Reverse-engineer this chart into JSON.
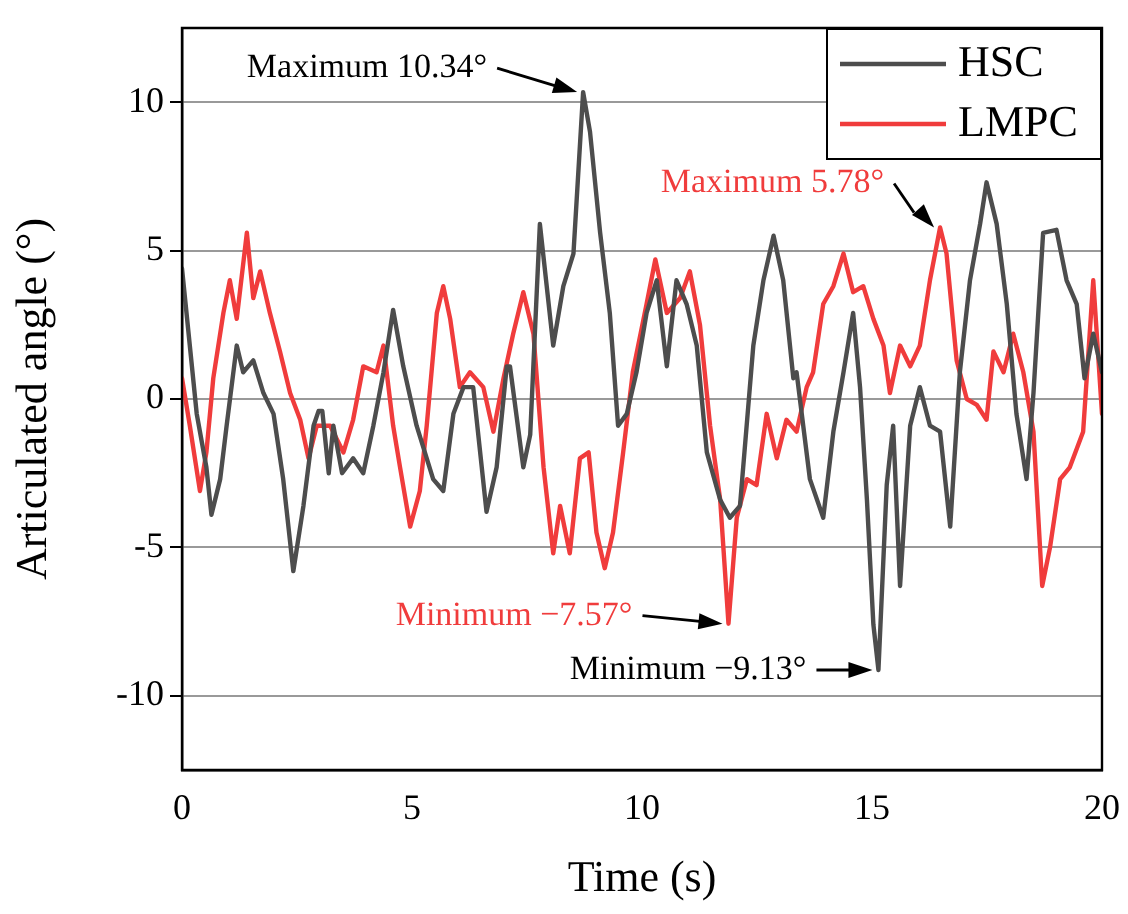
{
  "chart_data": {
    "type": "line",
    "xlabel": "Time (s)",
    "ylabel": "Articulated angle (°)",
    "xlim": [
      0,
      20
    ],
    "xticks": [
      0,
      5,
      10,
      15,
      20
    ],
    "ylim": [
      -12.5,
      12.5
    ],
    "yticks": [
      -10,
      -5,
      0,
      5,
      10
    ],
    "grid": "y",
    "legend": "top right",
    "marker": "none",
    "line_style": "solid",
    "series": [
      {
        "name": "HSC",
        "color": "#4d4d4d",
        "x": [
          0,
          0.32,
          0.53,
          0.64,
          0.83,
          0.97,
          1.19,
          1.33,
          1.55,
          1.77,
          1.99,
          2.2,
          2.42,
          2.64,
          2.86,
          2.97,
          3.05,
          3.19,
          3.29,
          3.48,
          3.72,
          3.94,
          4.16,
          4.38,
          4.59,
          4.81,
          5.1,
          5.46,
          5.68,
          5.9,
          6.12,
          6.33,
          6.62,
          6.84,
          7.06,
          7.13,
          7.42,
          7.57,
          7.78,
          8.07,
          8.29,
          8.51,
          8.72,
          8.87,
          9.09,
          9.3,
          9.48,
          9.67,
          9.88,
          10.1,
          10.32,
          10.54,
          10.75,
          10.97,
          11.19,
          11.41,
          11.7,
          11.91,
          12.13,
          12.42,
          12.64,
          12.86,
          13.07,
          13.29,
          13.36,
          13.65,
          13.94,
          14.16,
          14.38,
          14.59,
          14.74,
          14.89,
          15.03,
          15.14,
          15.32,
          15.46,
          15.61,
          15.83,
          16.04,
          16.26,
          16.48,
          16.7,
          16.91,
          17.13,
          17.35,
          17.49,
          17.71,
          17.93,
          18.14,
          18.36,
          18.51,
          18.72,
          19.01,
          19.23,
          19.45,
          19.62,
          19.81,
          20
        ],
        "values": [
          4.4,
          -0.5,
          -2.3,
          -3.9,
          -2.7,
          -0.9,
          1.8,
          0.9,
          1.3,
          0.2,
          -0.5,
          -2.7,
          -5.8,
          -3.6,
          -0.9,
          -0.4,
          -0.4,
          -2.5,
          -0.9,
          -2.5,
          -2.0,
          -2.5,
          -0.9,
          0.9,
          3.0,
          1.1,
          -0.9,
          -2.7,
          -3.1,
          -0.5,
          0.4,
          0.4,
          -3.8,
          -2.3,
          1.1,
          1.1,
          -2.3,
          -1.2,
          5.9,
          1.8,
          3.8,
          4.9,
          10.34,
          9.0,
          5.6,
          2.9,
          -0.9,
          -0.5,
          0.9,
          2.9,
          4.0,
          1.1,
          4.0,
          3.2,
          1.8,
          -1.8,
          -3.4,
          -4.0,
          -3.6,
          1.8,
          4.0,
          5.5,
          4.0,
          0.7,
          0.9,
          -2.7,
          -4.0,
          -1.1,
          0.9,
          2.9,
          0.4,
          -3.4,
          -7.6,
          -9.13,
          -2.9,
          -0.9,
          -6.3,
          -0.9,
          0.4,
          -0.9,
          -1.1,
          -4.3,
          0.9,
          4.0,
          5.9,
          7.3,
          5.9,
          3.2,
          -0.5,
          -2.7,
          0.2,
          5.6,
          5.7,
          4.0,
          3.2,
          0.7,
          2.2,
          0.9
        ]
      },
      {
        "name": "LMPC",
        "color": "#f03c3c",
        "x": [
          0,
          0.17,
          0.39,
          0.53,
          0.68,
          0.9,
          1.04,
          1.19,
          1.41,
          1.55,
          1.7,
          1.91,
          2.13,
          2.35,
          2.57,
          2.75,
          2.93,
          3.22,
          3.51,
          3.72,
          3.94,
          4.23,
          4.38,
          4.59,
          4.74,
          4.96,
          5.17,
          5.32,
          5.54,
          5.68,
          5.83,
          6.04,
          6.26,
          6.55,
          6.77,
          6.99,
          7.2,
          7.42,
          7.64,
          7.86,
          8.07,
          8.22,
          8.43,
          8.65,
          8.84,
          9.01,
          9.19,
          9.37,
          9.59,
          9.8,
          10.1,
          10.29,
          10.54,
          10.83,
          11.04,
          11.26,
          11.48,
          11.7,
          11.88,
          12.06,
          12.28,
          12.49,
          12.71,
          12.93,
          13.14,
          13.36,
          13.58,
          13.72,
          13.94,
          14.16,
          14.38,
          14.59,
          14.81,
          15.03,
          15.25,
          15.39,
          15.61,
          15.83,
          16.04,
          16.26,
          16.48,
          16.62,
          16.84,
          17.06,
          17.28,
          17.49,
          17.64,
          17.86,
          18.07,
          18.29,
          18.51,
          18.7,
          18.87,
          19.09,
          19.3,
          19.59,
          19.81,
          20
        ],
        "values": [
          0.7,
          -0.9,
          -3.1,
          -1.8,
          0.7,
          2.9,
          4.0,
          2.7,
          5.6,
          3.4,
          4.3,
          2.9,
          1.6,
          0.2,
          -0.7,
          -2.0,
          -0.9,
          -0.9,
          -1.8,
          -0.7,
          1.1,
          0.9,
          1.8,
          -0.9,
          -2.3,
          -4.3,
          -3.1,
          -0.9,
          2.9,
          3.8,
          2.7,
          0.4,
          0.9,
          0.4,
          -1.1,
          0.7,
          2.2,
          3.6,
          2.2,
          -2.3,
          -5.2,
          -3.6,
          -5.2,
          -2.0,
          -1.8,
          -4.5,
          -5.7,
          -4.5,
          -1.8,
          0.9,
          3.2,
          4.7,
          2.9,
          3.4,
          4.3,
          2.5,
          -0.9,
          -3.4,
          -7.57,
          -4.0,
          -2.7,
          -2.9,
          -0.5,
          -2.0,
          -0.7,
          -1.1,
          0.4,
          0.9,
          3.2,
          3.8,
          4.9,
          3.6,
          3.8,
          2.7,
          1.8,
          0.2,
          1.8,
          1.1,
          1.8,
          4.0,
          5.78,
          4.9,
          1.3,
          0.0,
          -0.2,
          -0.7,
          1.6,
          0.9,
          2.2,
          0.9,
          -1.1,
          -6.3,
          -5.0,
          -2.7,
          -2.3,
          -1.1,
          4.0,
          -0.5
        ]
      }
    ],
    "annotations": [
      {
        "text": "Maximum 10.34°",
        "x": 8.72,
        "y": 10.34
      },
      {
        "text": "Maximum 5.78°",
        "x": 16.48,
        "y": 5.78
      },
      {
        "text": "Minimum −7.57°",
        "x": 11.88,
        "y": -7.57
      },
      {
        "text": "Minimum −9.13°",
        "x": 15.14,
        "y": -9.13
      }
    ]
  }
}
